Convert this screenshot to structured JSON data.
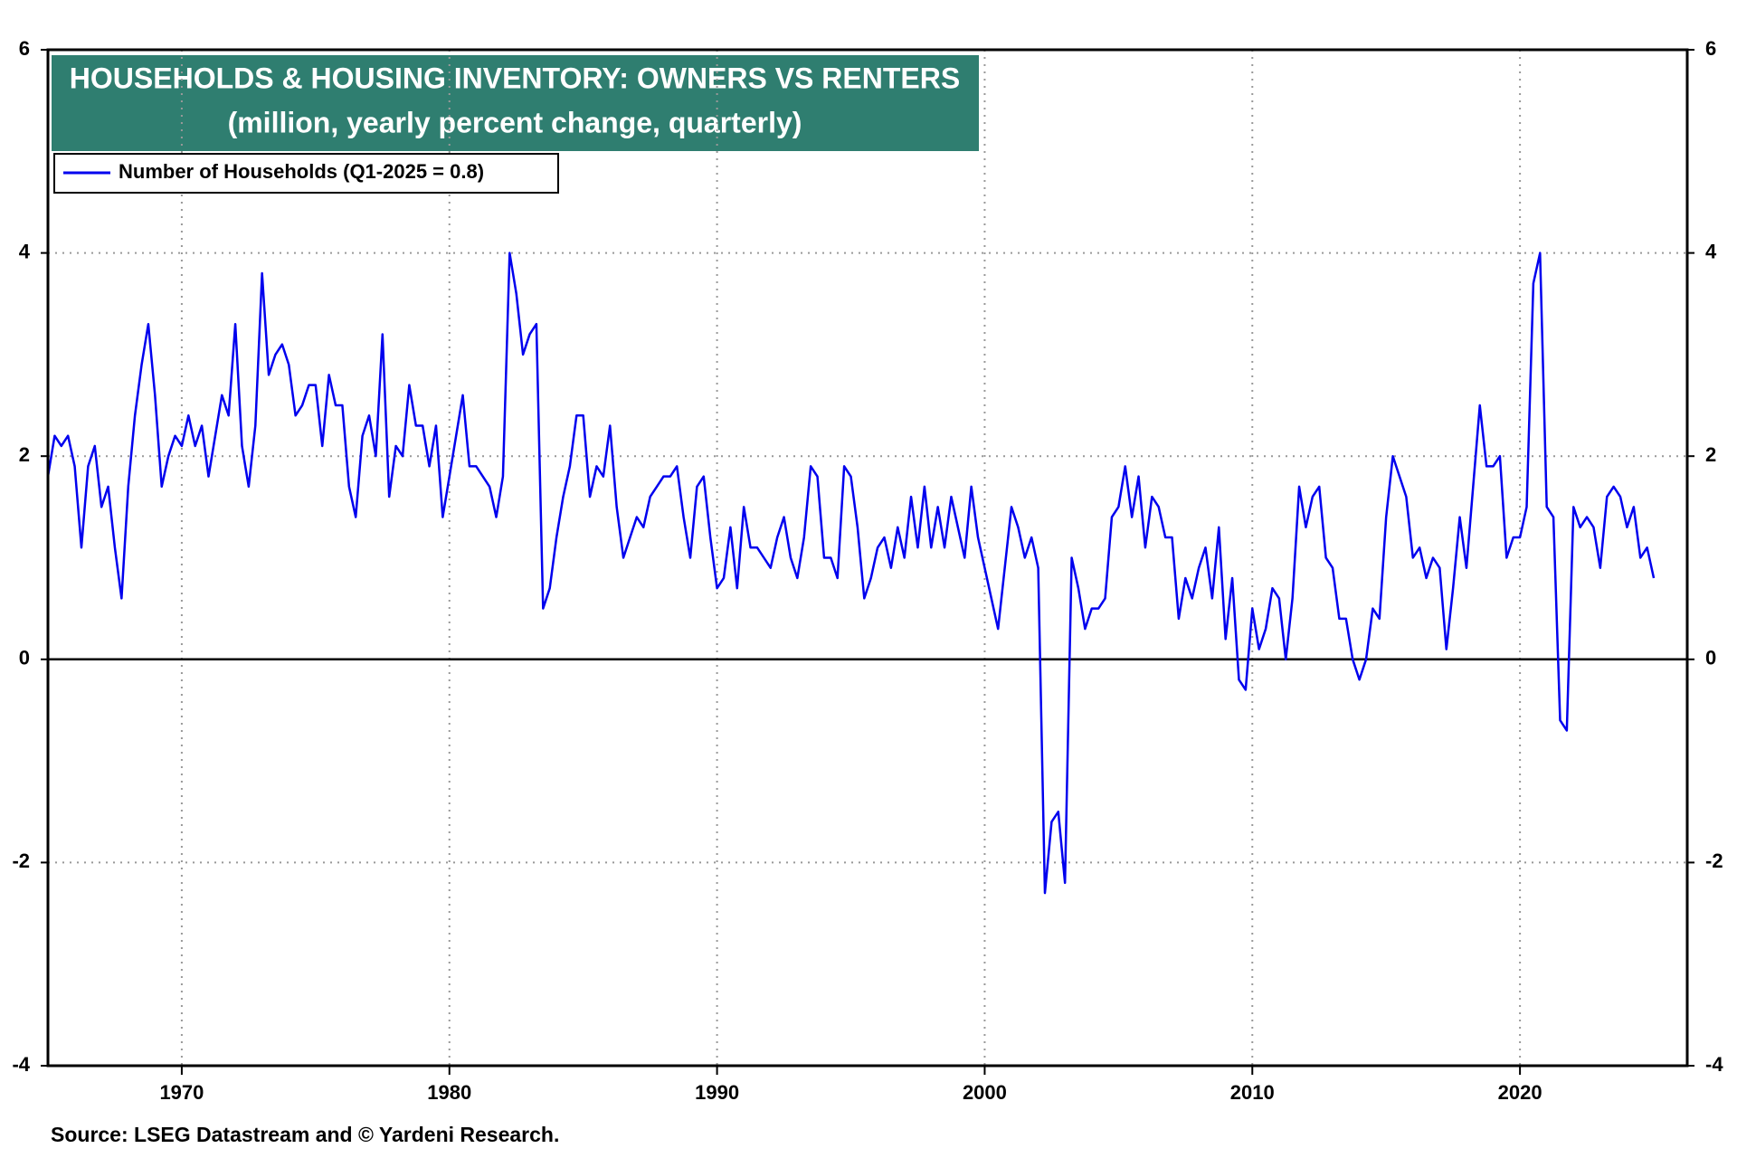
{
  "chart_data": {
    "type": "line",
    "title": "HOUSEHOLDS & HOUSING INVENTORY: OWNERS VS RENTERS",
    "subtitle": "(million, yearly percent change, quarterly)",
    "source": "Source: LSEG Datastream and © Yardeni Research.",
    "xlim": [
      1965,
      2026.25
    ],
    "xticks": [
      1970,
      1980,
      1990,
      2000,
      2010,
      2020
    ],
    "ylim": [
      -4,
      6
    ],
    "yticks": [
      -4,
      -2,
      0,
      2,
      4,
      6
    ],
    "y2lim": [
      -4,
      6
    ],
    "y2ticks": [
      -4,
      -2,
      0,
      2,
      4,
      6
    ],
    "grid": true,
    "legend": "upper left",
    "x": [
      1965,
      1965.25,
      1965.5,
      1965.75,
      1966,
      1966.25,
      1966.5,
      1966.75,
      1967,
      1967.25,
      1967.5,
      1967.75,
      1968,
      1968.25,
      1968.5,
      1968.75,
      1969,
      1969.25,
      1969.5,
      1969.75,
      1970,
      1970.25,
      1970.5,
      1970.75,
      1971,
      1971.25,
      1971.5,
      1971.75,
      1972,
      1972.25,
      1972.5,
      1972.75,
      1973,
      1973.25,
      1973.5,
      1973.75,
      1974,
      1974.25,
      1974.5,
      1974.75,
      1975,
      1975.25,
      1975.5,
      1975.75,
      1976,
      1976.25,
      1976.5,
      1976.75,
      1977,
      1977.25,
      1977.5,
      1977.75,
      1978,
      1978.25,
      1978.5,
      1978.75,
      1979,
      1979.25,
      1979.5,
      1979.75,
      1980,
      1980.25,
      1980.5,
      1980.75,
      1981,
      1981.25,
      1981.5,
      1981.75,
      1982,
      1982.25,
      1982.5,
      1982.75,
      1983,
      1983.25,
      1983.5,
      1983.75,
      1984,
      1984.25,
      1984.5,
      1984.75,
      1985,
      1985.25,
      1985.5,
      1985.75,
      1986,
      1986.25,
      1986.5,
      1986.75,
      1987,
      1987.25,
      1987.5,
      1987.75,
      1988,
      1988.25,
      1988.5,
      1988.75,
      1989,
      1989.25,
      1989.5,
      1989.75,
      1990,
      1990.25,
      1990.5,
      1990.75,
      1991,
      1991.25,
      1991.5,
      1991.75,
      1992,
      1992.25,
      1992.5,
      1992.75,
      1993,
      1993.25,
      1993.5,
      1993.75,
      1994,
      1994.25,
      1994.5,
      1994.75,
      1995,
      1995.25,
      1995.5,
      1995.75,
      1996,
      1996.25,
      1996.5,
      1996.75,
      1997,
      1997.25,
      1997.5,
      1997.75,
      1998,
      1998.25,
      1998.5,
      1998.75,
      1999,
      1999.25,
      1999.5,
      1999.75,
      2000,
      2000.25,
      2000.5,
      2000.75,
      2001,
      2001.25,
      2001.5,
      2001.75,
      2002,
      2002.25,
      2002.5,
      2002.75,
      2003,
      2003.25,
      2003.5,
      2003.75,
      2004,
      2004.25,
      2004.5,
      2004.75,
      2005,
      2005.25,
      2005.5,
      2005.75,
      2006,
      2006.25,
      2006.5,
      2006.75,
      2007,
      2007.25,
      2007.5,
      2007.75,
      2008,
      2008.25,
      2008.5,
      2008.75,
      2009,
      2009.25,
      2009.5,
      2009.75,
      2010,
      2010.25,
      2010.5,
      2010.75,
      2011,
      2011.25,
      2011.5,
      2011.75,
      2012,
      2012.25,
      2012.5,
      2012.75,
      2013,
      2013.25,
      2013.5,
      2013.75,
      2014,
      2014.25,
      2014.5,
      2014.75,
      2015,
      2015.25,
      2015.5,
      2015.75,
      2016,
      2016.25,
      2016.5,
      2016.75,
      2017,
      2017.25,
      2017.5,
      2017.75,
      2018,
      2018.25,
      2018.5,
      2018.75,
      2019,
      2019.25,
      2019.5,
      2019.75,
      2020,
      2020.25,
      2020.5,
      2020.75,
      2021,
      2021.25,
      2021.5,
      2021.75,
      2022,
      2022.25,
      2022.5,
      2022.75,
      2023,
      2023.25,
      2023.5,
      2023.75,
      2024,
      2024.25,
      2024.5,
      2024.75,
      2025
    ],
    "series": [
      {
        "name": "Number of Households (Q1-2025 = 0.8)",
        "color": "#0000ee",
        "values": [
          1.8,
          2.2,
          2.1,
          2.2,
          1.9,
          1.1,
          1.9,
          2.1,
          1.5,
          1.7,
          1.1,
          0.6,
          1.7,
          2.4,
          2.9,
          3.3,
          2.6,
          1.7,
          2.0,
          2.2,
          2.1,
          2.4,
          2.1,
          2.3,
          1.8,
          2.2,
          2.6,
          2.4,
          3.3,
          2.1,
          1.7,
          2.3,
          3.8,
          2.8,
          3.0,
          3.1,
          2.9,
          2.4,
          2.5,
          2.7,
          2.7,
          2.1,
          2.8,
          2.5,
          2.5,
          1.7,
          1.4,
          2.2,
          2.4,
          2.0,
          3.2,
          1.6,
          2.1,
          2.0,
          2.7,
          2.3,
          2.3,
          1.9,
          2.3,
          1.4,
          1.8,
          2.2,
          2.6,
          1.9,
          1.9,
          1.8,
          1.7,
          1.4,
          1.8,
          4.0,
          3.6,
          3.0,
          3.2,
          3.3,
          0.5,
          0.7,
          1.2,
          1.6,
          1.9,
          2.4,
          2.4,
          1.6,
          1.9,
          1.8,
          2.3,
          1.5,
          1.0,
          1.2,
          1.4,
          1.3,
          1.6,
          1.7,
          1.8,
          1.8,
          1.9,
          1.4,
          1.0,
          1.7,
          1.8,
          1.2,
          0.7,
          0.8,
          1.3,
          0.7,
          1.5,
          1.1,
          1.1,
          1.0,
          0.9,
          1.2,
          1.4,
          1.0,
          0.8,
          1.2,
          1.9,
          1.8,
          1.0,
          1.0,
          0.8,
          1.9,
          1.8,
          1.3,
          0.6,
          0.8,
          1.1,
          1.2,
          0.9,
          1.3,
          1.0,
          1.6,
          1.1,
          1.7,
          1.1,
          1.5,
          1.1,
          1.6,
          1.3,
          1.0,
          1.7,
          1.2,
          0.9,
          0.6,
          0.3,
          0.9,
          1.5,
          1.3,
          1.0,
          1.2,
          0.9,
          -2.3,
          -1.6,
          -1.5,
          -2.2,
          1.0,
          0.7,
          0.3,
          0.5,
          0.5,
          0.6,
          1.4,
          1.5,
          1.9,
          1.4,
          1.8,
          1.1,
          1.6,
          1.5,
          1.2,
          1.2,
          0.4,
          0.8,
          0.6,
          0.9,
          1.1,
          0.6,
          1.3,
          0.2,
          0.8,
          -0.2,
          -0.3,
          0.5,
          0.1,
          0.3,
          0.7,
          0.6,
          0.0,
          0.6,
          1.7,
          1.3,
          1.6,
          1.7,
          1.0,
          0.9,
          0.4,
          0.4,
          0.0,
          -0.2,
          0.0,
          0.5,
          0.4,
          1.4,
          2.0,
          1.8,
          1.6,
          1.0,
          1.1,
          0.8,
          1.0,
          0.9,
          0.1,
          0.7,
          1.4,
          0.9,
          1.7,
          2.5,
          1.9,
          1.9,
          2.0,
          1.0,
          1.2,
          1.2,
          1.5,
          3.7,
          4.0,
          1.5,
          1.4,
          -0.6,
          -0.7,
          1.5,
          1.3,
          1.4,
          1.3,
          0.9,
          1.6,
          1.7,
          1.6,
          1.3,
          1.5,
          1.0,
          1.1,
          0.8
        ]
      }
    ]
  }
}
